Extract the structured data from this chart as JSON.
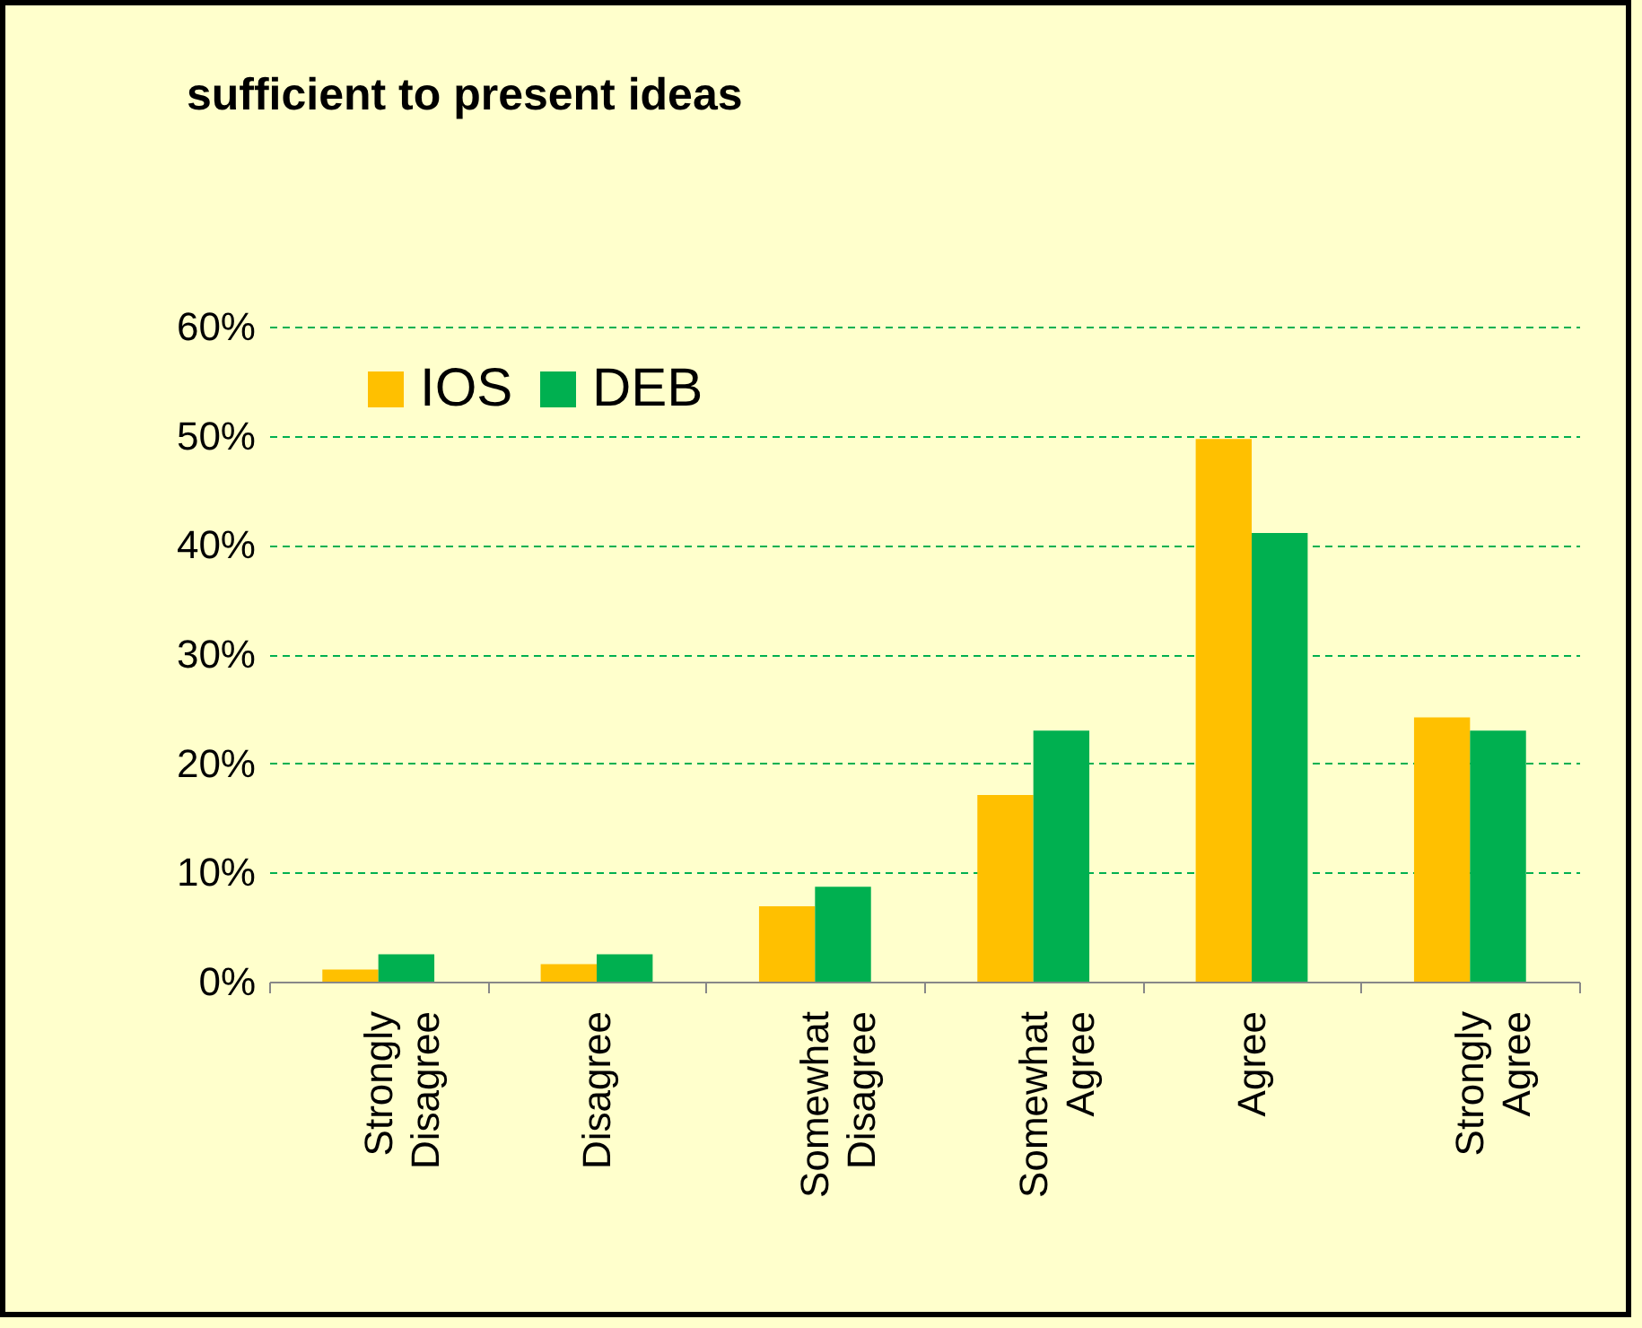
{
  "chart_data": {
    "type": "bar",
    "title": "sufficient to present ideas",
    "categories": [
      "Strongly Disagree",
      "Disagree",
      "Somewhat Disagree",
      "Somewhat Agree",
      "Agree",
      "Strongly Agree"
    ],
    "series": [
      {
        "name": "IOS",
        "color": "#ffc000",
        "values": [
          1.1,
          1.6,
          6.9,
          17.1,
          49.7,
          24.2
        ]
      },
      {
        "name": "DEB",
        "color": "#00b050",
        "values": [
          2.5,
          2.5,
          8.7,
          23,
          41.1,
          23
        ]
      }
    ],
    "ylim": [
      0,
      60
    ],
    "yticks": [
      {
        "value": 0,
        "label": "0%"
      },
      {
        "value": 10,
        "label": "10%"
      },
      {
        "value": 20,
        "label": "20%"
      },
      {
        "value": 30,
        "label": "30%"
      },
      {
        "value": 40,
        "label": "40%"
      },
      {
        "value": 50,
        "label": "50%"
      },
      {
        "value": 60,
        "label": "60%"
      }
    ],
    "grid": "y",
    "legend": "top left"
  }
}
